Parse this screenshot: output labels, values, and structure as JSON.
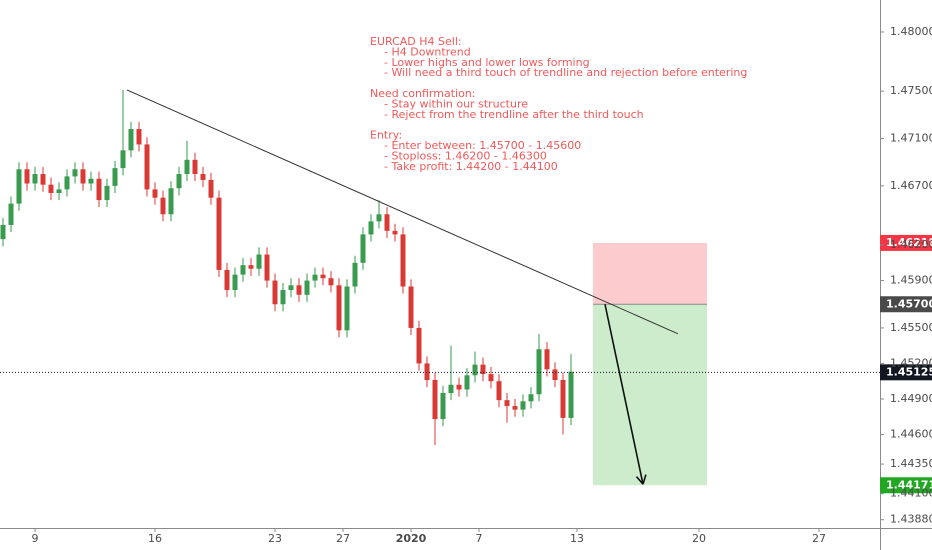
{
  "chart_data": {
    "type": "candlestick",
    "up_color": "#3a9a4f",
    "down_color": "#d93a35",
    "grid": false,
    "xlim": [
      -8.75,
      211.25
    ],
    "ylim": [
      1.4381,
      1.4827
    ],
    "xticks": [
      {
        "value": 0,
        "label": "9"
      },
      {
        "value": 30,
        "label": "16"
      },
      {
        "value": 60,
        "label": "23"
      },
      {
        "value": 77,
        "label": "27"
      },
      {
        "value": 94,
        "label": "2020"
      },
      {
        "value": 111,
        "label": "7"
      },
      {
        "value": 135.5,
        "label": "13"
      },
      {
        "value": 166,
        "label": "20"
      },
      {
        "value": 196,
        "label": "27"
      }
    ],
    "yticks": [
      {
        "value": 1.48,
        "label": "1.48000"
      },
      {
        "value": 1.475,
        "label": "1.47500"
      },
      {
        "value": 1.471,
        "label": "1.47100"
      },
      {
        "value": 1.467,
        "label": "1.46700"
      },
      {
        "value": 1.462,
        "label": "1.46200"
      },
      {
        "value": 1.459,
        "label": "1.45900"
      },
      {
        "value": 1.455,
        "label": "1.45500"
      },
      {
        "value": 1.452,
        "label": "1.45200"
      },
      {
        "value": 1.449,
        "label": "1.44900"
      },
      {
        "value": 1.446,
        "label": "1.44600"
      },
      {
        "value": 1.4435,
        "label": "1.44350"
      },
      {
        "value": 1.441,
        "label": "1.44100"
      },
      {
        "value": 1.4388,
        "label": "1.43880"
      }
    ],
    "candles": {
      "x": [
        -8,
        -6,
        -4,
        -2,
        0,
        2,
        4,
        6,
        8,
        10,
        12,
        14,
        16,
        18,
        20,
        22,
        24,
        26,
        28,
        30,
        32,
        34,
        36,
        38,
        40,
        42,
        44,
        46,
        48,
        50,
        52,
        54,
        56,
        58,
        60,
        62,
        64,
        66,
        68,
        70,
        72,
        74,
        76,
        78,
        80,
        82,
        84,
        86,
        88,
        90,
        92,
        94,
        96,
        98,
        100,
        102,
        104,
        106,
        108,
        110,
        112,
        114,
        116,
        118,
        120,
        122,
        124,
        126,
        128,
        130,
        132,
        134
      ],
      "open": [
        1.4625,
        1.4637,
        1.4655,
        1.4684,
        1.4672,
        1.468,
        1.4671,
        1.4664,
        1.4667,
        1.4678,
        1.4684,
        1.4672,
        1.4676,
        1.4658,
        1.467,
        1.4685,
        1.47,
        1.4718,
        1.4705,
        1.4667,
        1.466,
        1.4646,
        1.4668,
        1.468,
        1.4692,
        1.468,
        1.4675,
        1.466,
        1.4599,
        1.4582,
        1.4595,
        1.4603,
        1.46,
        1.4612,
        1.459,
        1.457,
        1.4582,
        1.4586,
        1.4578,
        1.459,
        1.4595,
        1.4592,
        1.4586,
        1.4548,
        1.4585,
        1.4605,
        1.4629,
        1.464,
        1.4646,
        1.4632,
        1.4629,
        1.4585,
        1.455,
        1.452,
        1.4506,
        1.4473,
        1.4495,
        1.4502,
        1.4498,
        1.451,
        1.4519,
        1.4511,
        1.4505,
        1.4489,
        1.4484,
        1.4481,
        1.4488,
        1.4494,
        1.4532,
        1.4515,
        1.4506,
        1.4474
      ],
      "high": [
        1.4643,
        1.4661,
        1.469,
        1.469,
        1.4686,
        1.4686,
        1.4677,
        1.4673,
        1.4684,
        1.469,
        1.469,
        1.4682,
        1.4682,
        1.4676,
        1.4691,
        1.4751,
        1.4724,
        1.4724,
        1.4711,
        1.4673,
        1.4666,
        1.4674,
        1.4686,
        1.4708,
        1.4698,
        1.4686,
        1.4681,
        1.4666,
        1.4605,
        1.4601,
        1.4609,
        1.4609,
        1.4618,
        1.4618,
        1.4596,
        1.4588,
        1.4592,
        1.4592,
        1.4596,
        1.4601,
        1.4601,
        1.4598,
        1.4592,
        1.4591,
        1.4611,
        1.4635,
        1.4646,
        1.4658,
        1.4652,
        1.4638,
        1.4635,
        1.4591,
        1.4556,
        1.4526,
        1.4512,
        1.4501,
        1.4535,
        1.4508,
        1.4516,
        1.453,
        1.4525,
        1.4517,
        1.4511,
        1.4495,
        1.449,
        1.4494,
        1.45,
        1.4545,
        1.4538,
        1.4521,
        1.4512,
        1.4528
      ],
      "low": [
        1.4619,
        1.4631,
        1.4649,
        1.4666,
        1.4666,
        1.4665,
        1.4658,
        1.4658,
        1.4661,
        1.4672,
        1.4666,
        1.4666,
        1.4652,
        1.4652,
        1.4664,
        1.4679,
        1.4694,
        1.4699,
        1.4661,
        1.4654,
        1.464,
        1.464,
        1.4662,
        1.4674,
        1.4674,
        1.4669,
        1.4654,
        1.4593,
        1.4576,
        1.4576,
        1.4589,
        1.4594,
        1.4594,
        1.4584,
        1.4564,
        1.4564,
        1.4576,
        1.4572,
        1.4572,
        1.4584,
        1.4586,
        1.458,
        1.4542,
        1.4542,
        1.4579,
        1.4599,
        1.4623,
        1.4634,
        1.4626,
        1.4623,
        1.4579,
        1.4544,
        1.4514,
        1.45,
        1.4451,
        1.4467,
        1.4489,
        1.4492,
        1.4492,
        1.4504,
        1.4505,
        1.4499,
        1.4483,
        1.447,
        1.4475,
        1.4475,
        1.4482,
        1.4488,
        1.4509,
        1.45,
        1.446,
        1.4468
      ],
      "close": [
        1.4637,
        1.4655,
        1.4684,
        1.4672,
        1.468,
        1.4671,
        1.4664,
        1.4667,
        1.4678,
        1.4684,
        1.4672,
        1.4676,
        1.4658,
        1.467,
        1.4685,
        1.47,
        1.4718,
        1.4705,
        1.4667,
        1.466,
        1.4646,
        1.4668,
        1.468,
        1.4692,
        1.468,
        1.4675,
        1.466,
        1.4599,
        1.4582,
        1.4595,
        1.4603,
        1.46,
        1.4612,
        1.459,
        1.457,
        1.4582,
        1.4586,
        1.4578,
        1.459,
        1.4595,
        1.4592,
        1.4586,
        1.4548,
        1.4585,
        1.4605,
        1.4629,
        1.464,
        1.4646,
        1.4632,
        1.4629,
        1.4585,
        1.455,
        1.452,
        1.4506,
        1.4473,
        1.4495,
        1.4502,
        1.4498,
        1.451,
        1.4519,
        1.4511,
        1.4505,
        1.4489,
        1.4484,
        1.4481,
        1.4488,
        1.4494,
        1.4532,
        1.4515,
        1.4506,
        1.4474,
        1.4513
      ]
    },
    "trendline": {
      "x": [
        23,
        160.75
      ],
      "y": [
        1.4751,
        1.4545
      ],
      "color": "#333333"
    },
    "arrow": {
      "x": [
        142.5,
        152
      ],
      "y": [
        1.457,
        1.4418
      ],
      "color": "#111111"
    },
    "position": {
      "x": [
        139.5,
        168
      ],
      "entry": 1.457,
      "stop": 1.46218,
      "target": 1.44171,
      "stop_color": "#fccbcd",
      "target_color": "#cdeccb"
    },
    "price_labels": [
      {
        "value": 1.46218,
        "label": "1.46218",
        "color": "#f23645"
      },
      {
        "value": 1.457,
        "label": "1.45700",
        "color": "#4a4a4a"
      },
      {
        "value": 1.45125,
        "label": "1.45125",
        "color": "#131722",
        "line": "dotted"
      },
      {
        "value": 1.44171,
        "label": "1.44171",
        "color": "#22a722"
      }
    ],
    "note": {
      "color": "#f0595a",
      "sections": [
        {
          "heading": "EURCAD H4 Sell:",
          "items": [
            "- H4 Downtrend",
            "- Lower highs and lower lows forming",
            "- Will need a third touch of trendline and rejection before entering"
          ]
        },
        {
          "heading": "Need confirmation:",
          "items": [
            "- Stay within our structure",
            "- Reject from the trendline after the third touch"
          ]
        },
        {
          "heading": "Entry:",
          "items": [
            "- Enter between: 1.45700 - 1.45600",
            "- Stoploss: 1.46200 - 1.46300",
            "- Take profit: 1.44200 - 1.44100"
          ]
        }
      ]
    }
  }
}
